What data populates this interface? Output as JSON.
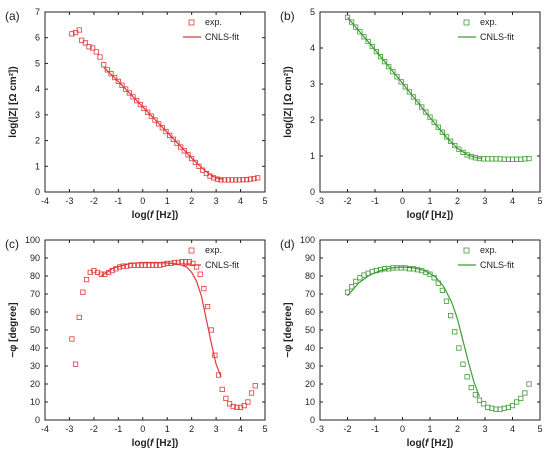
{
  "chart_data": [
    {
      "type": "scatter",
      "panel": "(a)",
      "xlabel_pre": "log(",
      "xlabel_italic": "f",
      "xlabel_post": " [Hz])",
      "ylabel": "log(|Z| [Ω cm²])",
      "xlim": [
        -4,
        5
      ],
      "ylim": [
        0,
        7
      ],
      "xticks": [
        "-4",
        "-3",
        "-2",
        "-1",
        "0",
        "1",
        "2",
        "3",
        "4",
        "5"
      ],
      "yticks": [
        "0",
        "1",
        "2",
        "3",
        "4",
        "5",
        "6",
        "7"
      ],
      "color": "#e23a3a",
      "legend": {
        "exp": "exp.",
        "fit": "CNLS-fit",
        "placement": "top-right"
      },
      "exp": {
        "x": [
          -2.9,
          -2.75,
          -2.6,
          -2.5,
          -2.35,
          -2.2,
          -2.05,
          -1.9,
          -1.75,
          -1.6,
          -1.45,
          -1.3,
          -1.15,
          -1.0,
          -0.85,
          -0.7,
          -0.55,
          -0.4,
          -0.25,
          -0.1,
          0.05,
          0.2,
          0.35,
          0.5,
          0.65,
          0.8,
          0.95,
          1.1,
          1.25,
          1.4,
          1.55,
          1.7,
          1.85,
          2.0,
          2.15,
          2.3,
          2.45,
          2.6,
          2.75,
          2.9,
          3.05,
          3.2,
          3.35,
          3.5,
          3.65,
          3.8,
          3.95,
          4.1,
          4.25,
          4.4,
          4.55,
          4.7
        ],
        "y": [
          6.15,
          6.2,
          6.3,
          5.9,
          5.8,
          5.65,
          5.6,
          5.45,
          5.25,
          4.95,
          4.75,
          4.6,
          4.45,
          4.3,
          4.15,
          4.0,
          3.85,
          3.7,
          3.55,
          3.4,
          3.25,
          3.1,
          2.95,
          2.8,
          2.65,
          2.5,
          2.35,
          2.2,
          2.05,
          1.9,
          1.75,
          1.6,
          1.45,
          1.3,
          1.15,
          1.0,
          0.85,
          0.72,
          0.62,
          0.55,
          0.5,
          0.47,
          0.47,
          0.47,
          0.47,
          0.47,
          0.47,
          0.48,
          0.48,
          0.5,
          0.52,
          0.55
        ]
      },
      "fit": {
        "x": [
          -1.6,
          -1.0,
          0.0,
          1.0,
          2.0,
          2.4,
          2.7,
          2.9,
          3.1,
          3.3
        ],
        "y": [
          4.85,
          4.3,
          3.31,
          2.32,
          1.32,
          0.95,
          0.72,
          0.6,
          0.52,
          0.5
        ]
      }
    },
    {
      "type": "scatter",
      "panel": "(b)",
      "xlabel_pre": "log(",
      "xlabel_italic": "f",
      "xlabel_post": " [Hz])",
      "ylabel": "log(|Z| [Ω cm²])",
      "xlim": [
        -3,
        5
      ],
      "ylim": [
        0,
        5
      ],
      "xticks": [
        "-3",
        "-2",
        "-1",
        "0",
        "1",
        "2",
        "3",
        "4",
        "5"
      ],
      "yticks": [
        "0",
        "1",
        "2",
        "3",
        "4",
        "5"
      ],
      "color": "#3f9c35",
      "legend": {
        "exp": "exp.",
        "fit": "CNLS-fit",
        "placement": "top-right"
      },
      "exp": {
        "x": [
          -2.0,
          -1.85,
          -1.7,
          -1.55,
          -1.4,
          -1.25,
          -1.1,
          -0.95,
          -0.8,
          -0.65,
          -0.5,
          -0.35,
          -0.2,
          -0.05,
          0.1,
          0.25,
          0.4,
          0.55,
          0.7,
          0.85,
          1.0,
          1.15,
          1.3,
          1.45,
          1.6,
          1.75,
          1.9,
          2.05,
          2.2,
          2.35,
          2.5,
          2.65,
          2.8,
          2.95,
          3.1,
          3.25,
          3.4,
          3.55,
          3.7,
          3.85,
          4.0,
          4.15,
          4.3,
          4.45,
          4.6
        ],
        "y": [
          4.85,
          4.72,
          4.58,
          4.45,
          4.31,
          4.18,
          4.04,
          3.9,
          3.76,
          3.62,
          3.48,
          3.34,
          3.2,
          3.06,
          2.92,
          2.78,
          2.64,
          2.5,
          2.36,
          2.22,
          2.08,
          1.94,
          1.8,
          1.66,
          1.53,
          1.41,
          1.29,
          1.19,
          1.1,
          1.03,
          0.98,
          0.95,
          0.93,
          0.92,
          0.92,
          0.92,
          0.92,
          0.92,
          0.91,
          0.91,
          0.91,
          0.91,
          0.91,
          0.92,
          0.93
        ]
      },
      "fit": {
        "x": [
          -2.0,
          -1.0,
          0.0,
          1.0,
          1.6,
          2.0,
          2.4,
          2.7,
          2.9
        ],
        "y": [
          4.85,
          3.95,
          3.02,
          2.07,
          1.52,
          1.21,
          1.02,
          0.95,
          0.93
        ]
      }
    },
    {
      "type": "scatter",
      "panel": "(c)",
      "xlabel_pre": "log(",
      "xlabel_italic": "f",
      "xlabel_post": " [Hz])",
      "ylabel": "−φ [degree]",
      "xlim": [
        -4,
        5
      ],
      "ylim": [
        0,
        100
      ],
      "xticks": [
        "-4",
        "-3",
        "-2",
        "-1",
        "0",
        "1",
        "2",
        "3",
        "4",
        "5"
      ],
      "yticks": [
        "0",
        "10",
        "20",
        "30",
        "40",
        "50",
        "60",
        "70",
        "80",
        "90",
        "100"
      ],
      "color": "#e23a3a",
      "legend": {
        "exp": "exp.",
        "fit": "CNLS-fit",
        "placement": "top-right"
      },
      "exp": {
        "x": [
          -2.9,
          -2.75,
          -2.6,
          -2.45,
          -2.3,
          -2.15,
          -2.0,
          -1.85,
          -1.7,
          -1.55,
          -1.4,
          -1.25,
          -1.1,
          -0.95,
          -0.8,
          -0.65,
          -0.5,
          -0.35,
          -0.2,
          -0.05,
          0.1,
          0.25,
          0.4,
          0.55,
          0.7,
          0.85,
          1.0,
          1.15,
          1.3,
          1.45,
          1.6,
          1.75,
          1.9,
          2.05,
          2.2,
          2.35,
          2.5,
          2.65,
          2.8,
          2.95,
          3.1,
          3.25,
          3.4,
          3.55,
          3.7,
          3.85,
          4.0,
          4.15,
          4.3,
          4.45,
          4.6
        ],
        "y": [
          45,
          31,
          57,
          71,
          78,
          82,
          83,
          82,
          81,
          81,
          82,
          83,
          84,
          85,
          85.5,
          85.5,
          86,
          86,
          86,
          86,
          86,
          86,
          86,
          86,
          86,
          86.5,
          87,
          87,
          87.5,
          87.5,
          88,
          88,
          88,
          87,
          85,
          81,
          73,
          63,
          50,
          36,
          25,
          17,
          12,
          9,
          7.5,
          7,
          7,
          8,
          10,
          15,
          19
        ]
      },
      "fit": {
        "x": [
          -1.7,
          -1.2,
          -0.5,
          0.0,
          0.5,
          1.0,
          1.5,
          1.8,
          2.0,
          2.2,
          2.4,
          2.6,
          2.8,
          3.0,
          3.2
        ],
        "y": [
          80,
          84.5,
          87,
          87.5,
          87.5,
          87.3,
          86.5,
          85,
          82,
          77,
          69,
          56,
          43,
          31,
          24
        ]
      }
    },
    {
      "type": "scatter",
      "panel": "(d)",
      "xlabel_pre": "log(",
      "xlabel_italic": "f",
      "xlabel_post": " [Hz])",
      "ylabel": "−φ [degree]",
      "xlim": [
        -3,
        5
      ],
      "ylim": [
        0,
        100
      ],
      "xticks": [
        "-3",
        "-2",
        "-1",
        "0",
        "1",
        "2",
        "3",
        "4",
        "5"
      ],
      "yticks": [
        "0",
        "10",
        "20",
        "30",
        "40",
        "50",
        "60",
        "70",
        "80",
        "90",
        "100"
      ],
      "color": "#3f9c35",
      "legend": {
        "exp": "exp.",
        "fit": "CNLS-fit",
        "placement": "top-right"
      },
      "exp": {
        "x": [
          -2.0,
          -1.85,
          -1.7,
          -1.55,
          -1.4,
          -1.25,
          -1.1,
          -0.95,
          -0.8,
          -0.65,
          -0.5,
          -0.35,
          -0.2,
          -0.05,
          0.1,
          0.25,
          0.4,
          0.55,
          0.7,
          0.85,
          1.0,
          1.15,
          1.3,
          1.45,
          1.6,
          1.75,
          1.9,
          2.05,
          2.2,
          2.35,
          2.5,
          2.65,
          2.8,
          2.95,
          3.1,
          3.25,
          3.4,
          3.55,
          3.7,
          3.85,
          4.0,
          4.15,
          4.3,
          4.45,
          4.6
        ],
        "y": [
          71,
          74,
          77,
          79,
          80.5,
          81.5,
          82.5,
          83,
          83.5,
          84,
          84,
          84.5,
          84.5,
          84.5,
          84.5,
          84,
          84,
          83.5,
          83,
          82,
          81,
          79,
          76,
          72,
          66,
          58,
          49,
          40,
          31,
          24,
          18,
          14,
          11,
          9,
          7,
          6.5,
          6,
          6,
          6.5,
          7,
          8,
          10,
          12,
          15,
          20
        ]
      },
      "fit": {
        "x": [
          -2.0,
          -1.6,
          -1.2,
          -0.8,
          -0.4,
          0.0,
          0.4,
          0.8,
          1.2,
          1.5,
          1.8,
          2.0,
          2.2,
          2.4,
          2.6,
          2.8
        ],
        "y": [
          69,
          76,
          80.5,
          83,
          84.5,
          85,
          84.5,
          83,
          79.5,
          74,
          65,
          56,
          44,
          32,
          21,
          13
        ]
      }
    }
  ]
}
